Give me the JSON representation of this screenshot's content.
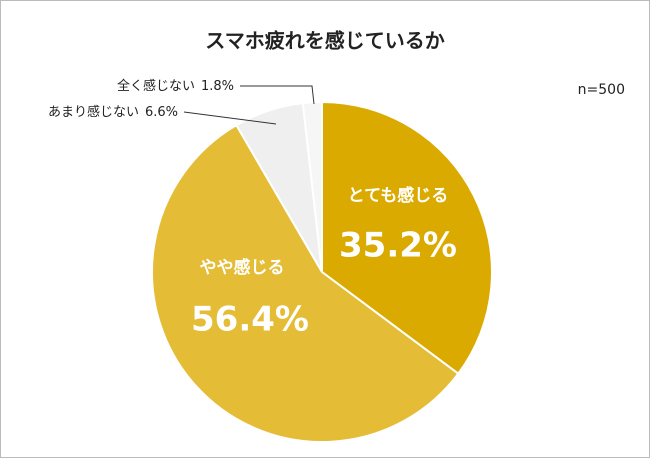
{
  "chart_data": {
    "type": "pie",
    "title": "スマホ疲れを感じているか",
    "annotation": "n=500",
    "categories": [
      "とても感じる",
      "やや感じる",
      "あまり感じない",
      "全く感じない"
    ],
    "values": [
      35.2,
      56.4,
      6.6,
      1.8
    ],
    "value_labels": [
      "35.2%",
      "56.4%",
      "6.6%",
      "1.8%"
    ],
    "colors": [
      "#dbaa00",
      "#e5bc35",
      "#efefef",
      "#f6f6f6"
    ]
  }
}
